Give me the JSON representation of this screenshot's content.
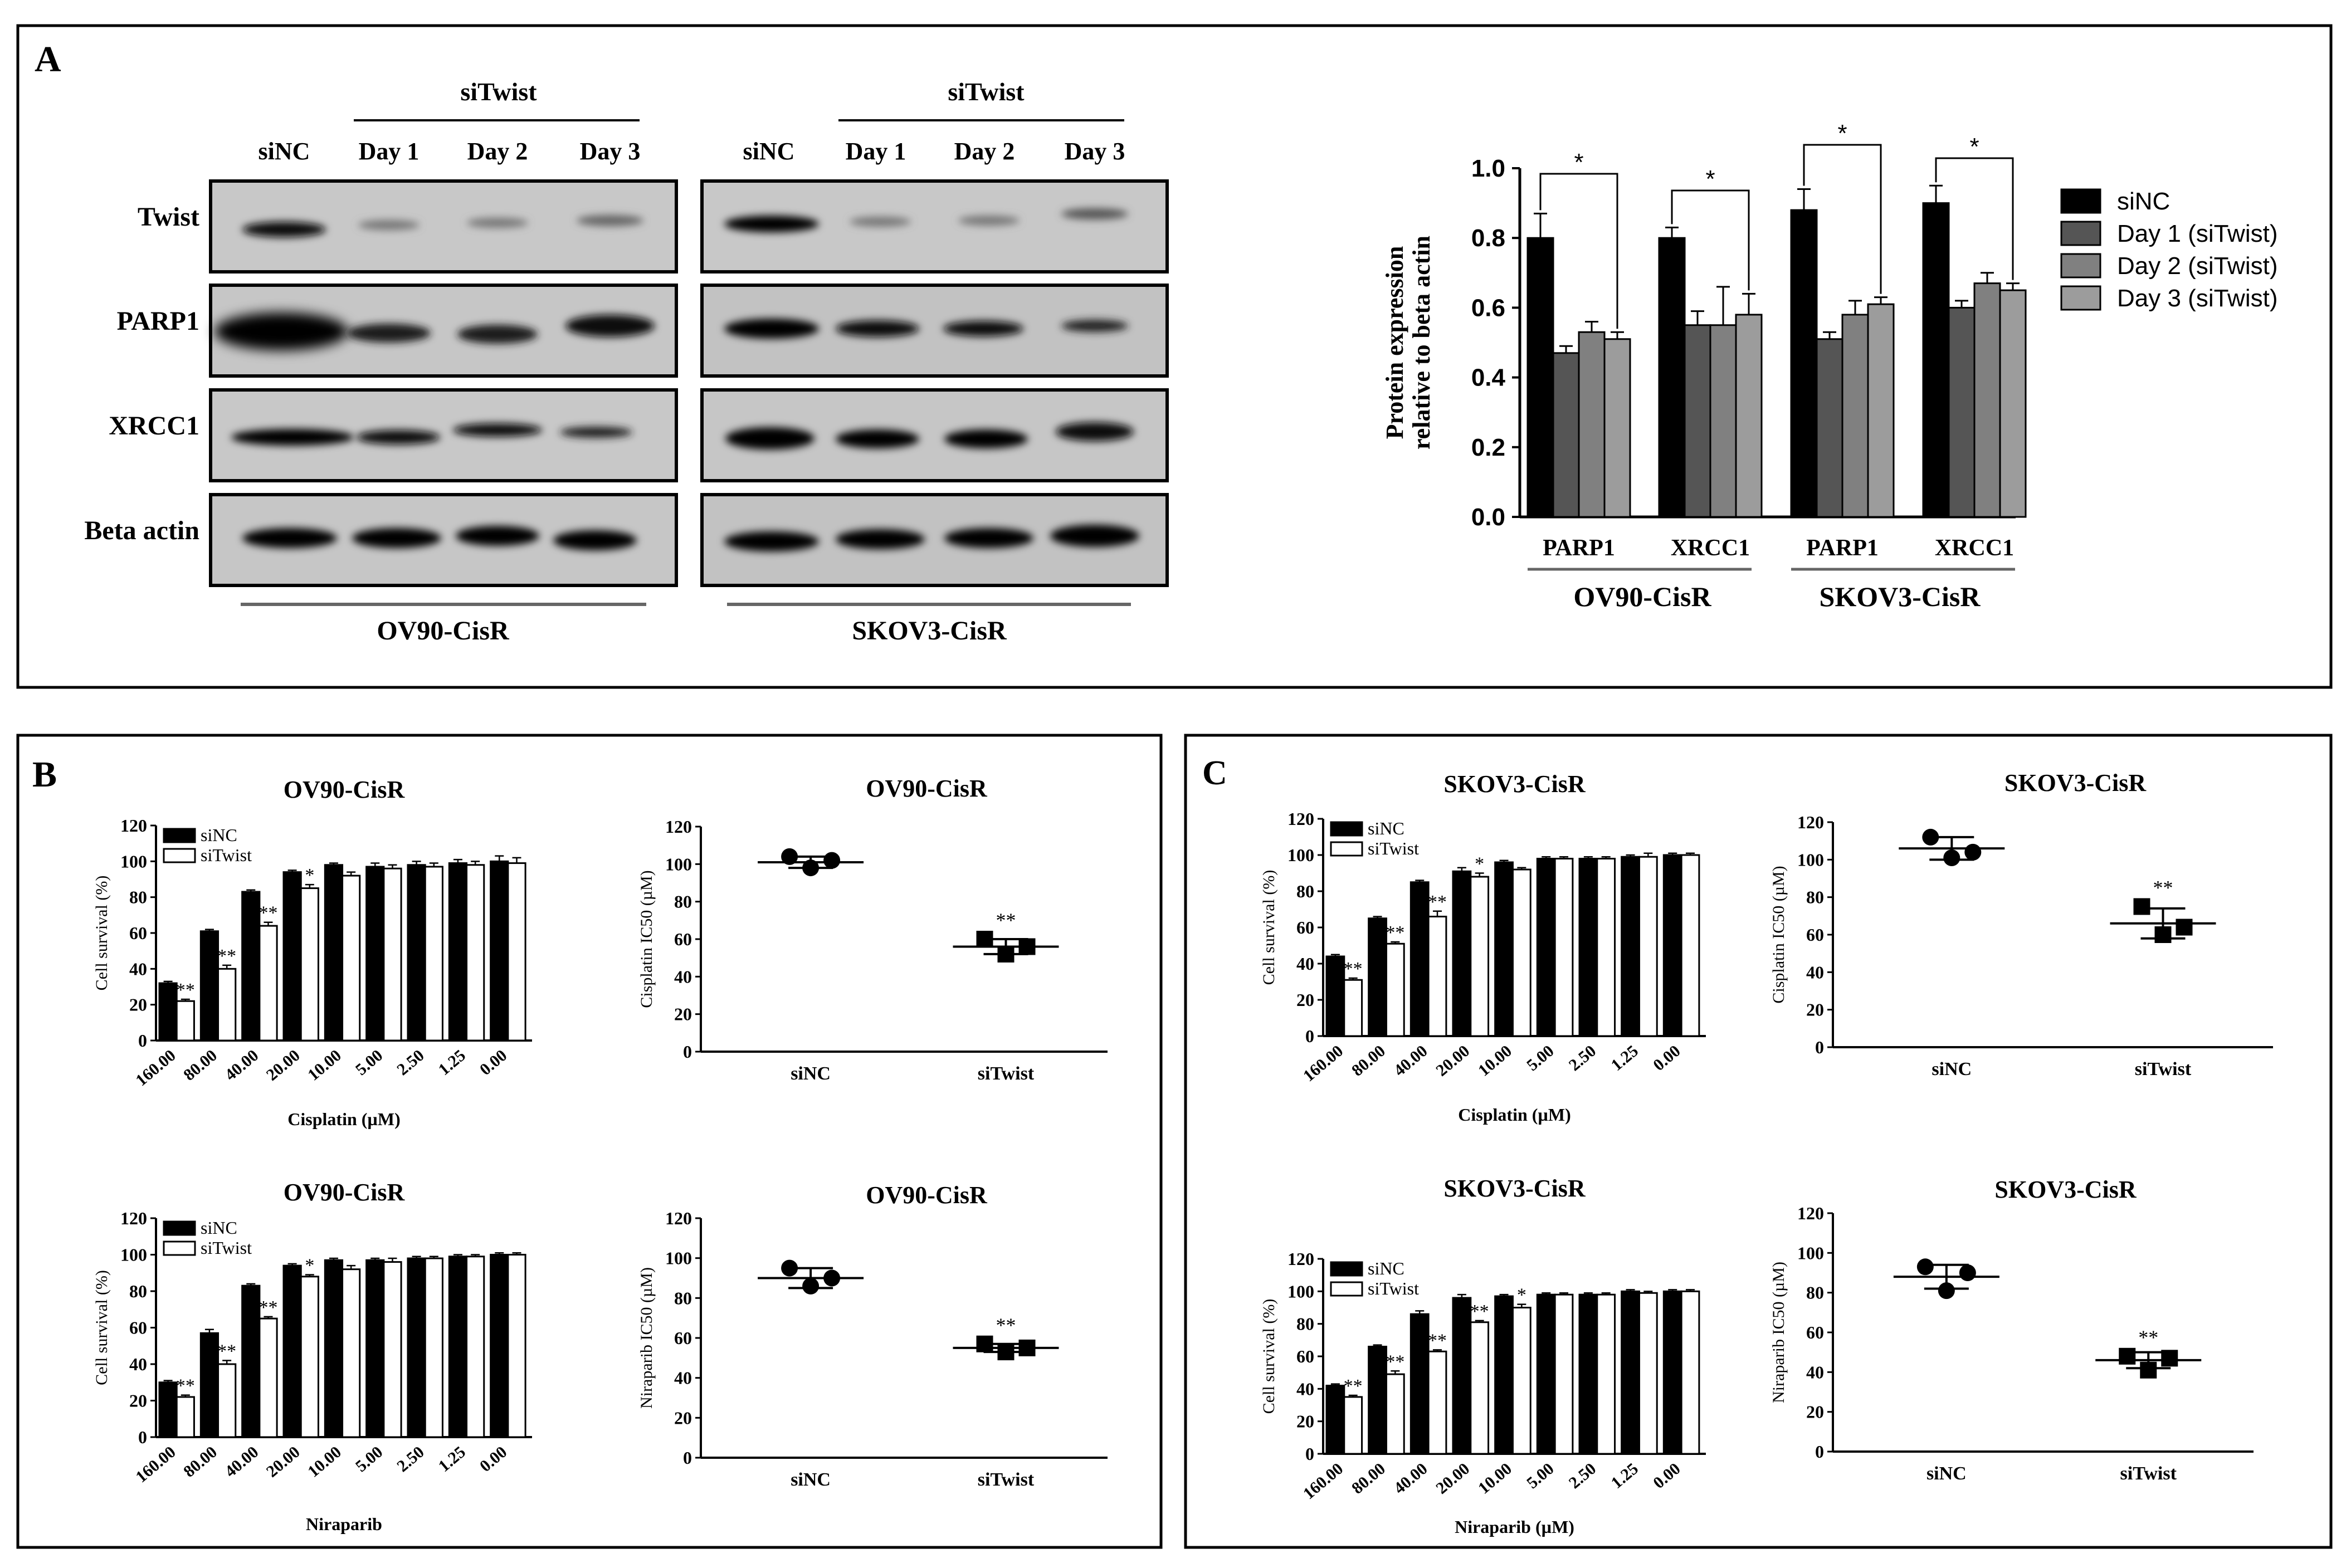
{
  "panel_letters": {
    "a": "A",
    "b": "B",
    "c": "C"
  },
  "blot": {
    "group_label": "siTwist",
    "lanes": [
      "siNC",
      "Day 1",
      "Day 2",
      "Day 3"
    ],
    "rows": [
      "Twist",
      "PARP1",
      "XRCC1",
      "Beta actin"
    ],
    "cell_lines": [
      "OV90-CisR",
      "SKOV3-CisR"
    ]
  },
  "chart_data": [
    {
      "id": "A-bar",
      "type": "bar",
      "title": "",
      "ylabel": "Protein expression relative to beta actin",
      "ylabel_lines": [
        "Protein expression",
        "relative to beta actin"
      ],
      "ylim": [
        0,
        1.0
      ],
      "yticks": [
        "0.0",
        "0.2",
        "0.4",
        "0.6",
        "0.8",
        "1.0"
      ],
      "categories": [
        "PARP1",
        "XRCC1",
        "PARP1",
        "XRCC1"
      ],
      "groups": [
        "OV90-CisR",
        "SKOV3-CisR"
      ],
      "series": [
        {
          "name": "siNC",
          "color": "#000000",
          "values": [
            0.8,
            0.8,
            0.88,
            0.9
          ],
          "errors": [
            0.07,
            0.03,
            0.06,
            0.05
          ]
        },
        {
          "name": "Day 1 (siTwist)",
          "color": "#555555",
          "values": [
            0.47,
            0.55,
            0.51,
            0.6
          ],
          "errors": [
            0.02,
            0.04,
            0.02,
            0.02
          ]
        },
        {
          "name": "Day 2 (siTwist)",
          "color": "#808080",
          "values": [
            0.53,
            0.55,
            0.58,
            0.67
          ],
          "errors": [
            0.03,
            0.11,
            0.04,
            0.03
          ]
        },
        {
          "name": "Day 3 (siTwist)",
          "color": "#9c9c9c",
          "values": [
            0.51,
            0.58,
            0.61,
            0.65
          ],
          "errors": [
            0.02,
            0.06,
            0.02,
            0.02
          ]
        }
      ],
      "significance": [
        "*",
        "*",
        "*",
        "*"
      ]
    },
    {
      "id": "B-cisplatin-survival",
      "type": "bar",
      "title": "OV90-CisR",
      "xlabel": "Cisplatin (µM)",
      "ylabel": "Cell survival (%)",
      "ylim": [
        0,
        120
      ],
      "yticks": [
        "0",
        "20",
        "40",
        "60",
        "80",
        "100",
        "120"
      ],
      "categories": [
        "160.00",
        "80.00",
        "40.00",
        "20.00",
        "10.00",
        "5.00",
        "2.50",
        "1.25",
        "0.00"
      ],
      "series": [
        {
          "name": "siNC",
          "color": "#000000",
          "values": [
            32,
            61,
            83,
            94,
            98,
            97,
            98,
            99,
            100
          ],
          "errors": [
            1,
            1,
            1,
            1,
            1,
            2,
            2,
            2,
            3
          ]
        },
        {
          "name": "siTwist",
          "color": "#ffffff",
          "values": [
            22,
            40,
            64,
            85,
            92,
            96,
            97,
            98,
            99
          ],
          "errors": [
            1,
            2,
            2,
            2,
            2,
            2,
            2,
            2,
            3
          ]
        }
      ],
      "annotations": [
        "**",
        "**",
        "**",
        "*",
        "",
        "",
        "",
        "",
        ""
      ]
    },
    {
      "id": "B-cisplatin-ic50",
      "type": "scatter",
      "title": "OV90-CisR",
      "ylabel": "Cisplatin IC50 (µM)",
      "ylim": [
        0,
        120
      ],
      "yticks": [
        "0",
        "20",
        "40",
        "60",
        "80",
        "100",
        "120"
      ],
      "categories": [
        "siNC",
        "siTwist"
      ],
      "points": [
        [
          104,
          98,
          102
        ],
        [
          60,
          52,
          56
        ]
      ],
      "means": [
        101,
        56
      ],
      "sd": [
        3,
        4
      ],
      "annotation": "**"
    },
    {
      "id": "B-niraparib-survival",
      "type": "bar",
      "title": "OV90-CisR",
      "xlabel": "Niraparib",
      "ylabel": "Cell survival (%)",
      "ylim": [
        0,
        120
      ],
      "yticks": [
        "0",
        "20",
        "40",
        "60",
        "80",
        "100",
        "120"
      ],
      "categories": [
        "160.00",
        "80.00",
        "40.00",
        "20.00",
        "10.00",
        "5.00",
        "2.50",
        "1.25",
        "0.00"
      ],
      "series": [
        {
          "name": "siNC",
          "color": "#000000",
          "values": [
            30,
            57,
            83,
            94,
            97,
            97,
            98,
            99,
            100
          ],
          "errors": [
            1,
            2,
            1,
            1,
            1,
            1,
            1,
            1,
            1
          ]
        },
        {
          "name": "siTwist",
          "color": "#ffffff",
          "values": [
            22,
            40,
            65,
            88,
            92,
            96,
            98,
            99,
            100
          ],
          "errors": [
            1,
            2,
            1,
            1,
            2,
            2,
            1,
            1,
            1
          ]
        }
      ],
      "annotations": [
        "**",
        "**",
        "**",
        "*",
        "",
        "",
        "",
        "",
        ""
      ]
    },
    {
      "id": "B-niraparib-ic50",
      "type": "scatter",
      "title": "OV90-CisR",
      "ylabel": "Niraparib IC50 (µM)",
      "ylim": [
        0,
        120
      ],
      "yticks": [
        "0",
        "20",
        "40",
        "60",
        "80",
        "100",
        "120"
      ],
      "categories": [
        "siNC",
        "siTwist"
      ],
      "points": [
        [
          95,
          86,
          90
        ],
        [
          57,
          53,
          55
        ]
      ],
      "means": [
        90,
        55
      ],
      "sd": [
        5,
        2
      ],
      "annotation": "**"
    },
    {
      "id": "C-cisplatin-survival",
      "type": "bar",
      "title": "SKOV3-CisR",
      "xlabel": "Cisplatin (µM)",
      "ylabel": "Cell survival (%)",
      "ylim": [
        0,
        120
      ],
      "yticks": [
        "0",
        "20",
        "40",
        "60",
        "80",
        "100",
        "120"
      ],
      "categories": [
        "160.00",
        "80.00",
        "40.00",
        "20.00",
        "10.00",
        "5.00",
        "2.50",
        "1.25",
        "0.00"
      ],
      "series": [
        {
          "name": "siNC",
          "color": "#000000",
          "values": [
            44,
            65,
            85,
            91,
            96,
            98,
            98,
            99,
            100
          ],
          "errors": [
            1,
            1,
            1,
            2,
            1,
            1,
            1,
            1,
            1
          ]
        },
        {
          "name": "siTwist",
          "color": "#ffffff",
          "values": [
            31,
            51,
            66,
            88,
            92,
            98,
            98,
            99,
            100
          ],
          "errors": [
            1,
            1,
            3,
            2,
            1,
            1,
            1,
            2,
            1
          ]
        }
      ],
      "annotations": [
        "**",
        "**",
        "**",
        "*",
        "",
        "",
        "",
        "",
        ""
      ]
    },
    {
      "id": "C-cisplatin-ic50",
      "type": "scatter",
      "title": "SKOV3-CisR",
      "ylabel": "Cisplatin IC50 (µM)",
      "ylim": [
        0,
        120
      ],
      "yticks": [
        "0",
        "20",
        "40",
        "60",
        "80",
        "100",
        "120"
      ],
      "categories": [
        "siNC",
        "siTwist"
      ],
      "points": [
        [
          112,
          101,
          104
        ],
        [
          75,
          60,
          64
        ]
      ],
      "means": [
        106,
        66
      ],
      "sd": [
        6,
        8
      ],
      "annotation": "**"
    },
    {
      "id": "C-niraparib-survival",
      "type": "bar",
      "title": "SKOV3-CisR",
      "xlabel": "Niraparib (µM)",
      "ylabel": "Cell survival (%)",
      "ylim": [
        0,
        120
      ],
      "yticks": [
        "0",
        "20",
        "40",
        "60",
        "80",
        "100",
        "120"
      ],
      "categories": [
        "160.00",
        "80.00",
        "40.00",
        "20.00",
        "10.00",
        "5.00",
        "2.50",
        "1.25",
        "0.00"
      ],
      "series": [
        {
          "name": "siNC",
          "color": "#000000",
          "values": [
            42,
            66,
            86,
            96,
            97,
            98,
            98,
            100,
            100
          ],
          "errors": [
            1,
            1,
            2,
            2,
            1,
            1,
            1,
            1,
            1
          ]
        },
        {
          "name": "siTwist",
          "color": "#ffffff",
          "values": [
            35,
            49,
            63,
            81,
            90,
            98,
            98,
            99,
            100
          ],
          "errors": [
            1,
            2,
            1,
            1,
            2,
            1,
            1,
            1,
            1
          ]
        }
      ],
      "annotations": [
        "**",
        "**",
        "**",
        "**",
        "*",
        "",
        "",
        "",
        ""
      ]
    },
    {
      "id": "C-niraparib-ic50",
      "type": "scatter",
      "title": "SKOV3-CisR",
      "ylabel": "Niraparib IC50 (µM)",
      "ylim": [
        0,
        120
      ],
      "yticks": [
        "0",
        "20",
        "40",
        "60",
        "80",
        "100",
        "120"
      ],
      "categories": [
        "siNC",
        "siTwist"
      ],
      "points": [
        [
          93,
          81,
          90
        ],
        [
          48,
          41,
          47
        ]
      ],
      "means": [
        88,
        46
      ],
      "sd": [
        6,
        4
      ],
      "annotation": "**"
    }
  ]
}
